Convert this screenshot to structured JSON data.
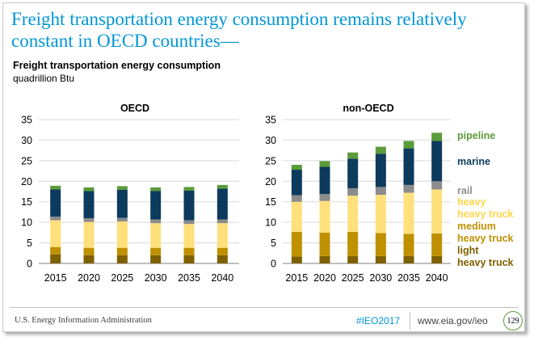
{
  "slide": {
    "title": "Freight transportation energy consumption remains relatively constant in OECD countries—",
    "subtitle": "Freight transportation energy consumption",
    "unit": "quadrillion  Btu"
  },
  "footer": {
    "agency": "U.S. Energy Information Administration",
    "hashtag": "#IEO2017",
    "url": "www.eia.gov/ieo",
    "page_number": "129"
  },
  "colors": {
    "light_heavy_truck": "#7f6000",
    "medium_heavy_truck": "#bf9000",
    "heavy_heavy_truck": "#ffe07a",
    "rail": "#8c8c8c",
    "marine": "#0c3b5d",
    "pipeline": "#5b9b3a"
  },
  "chart_data": [
    {
      "type": "bar",
      "stacked": true,
      "title": "OECD",
      "categories": [
        "2015",
        "2020",
        "2025",
        "2030",
        "2035",
        "2040"
      ],
      "ylim": [
        0,
        35
      ],
      "yticks": [
        0,
        5,
        10,
        15,
        20,
        25,
        30,
        35
      ],
      "series": [
        {
          "key": "light_heavy_truck",
          "values": [
            2.2,
            2.0,
            2.0,
            2.0,
            2.0,
            2.0
          ]
        },
        {
          "key": "medium_heavy_truck",
          "values": [
            1.8,
            1.8,
            1.8,
            1.8,
            1.8,
            1.8
          ]
        },
        {
          "key": "heavy_heavy_truck",
          "values": [
            6.5,
            6.3,
            6.4,
            6.0,
            5.8,
            6.0
          ]
        },
        {
          "key": "rail",
          "values": [
            0.9,
            0.9,
            0.9,
            0.9,
            0.9,
            0.9
          ]
        },
        {
          "key": "marine",
          "values": [
            6.6,
            6.6,
            6.8,
            6.9,
            7.2,
            7.5
          ]
        },
        {
          "key": "pipeline",
          "values": [
            0.9,
            0.9,
            0.9,
            0.9,
            0.9,
            0.9
          ]
        }
      ]
    },
    {
      "type": "bar",
      "stacked": true,
      "title": "non-OECD",
      "categories": [
        "2015",
        "2020",
        "2025",
        "2030",
        "2035",
        "2040"
      ],
      "ylim": [
        0,
        35
      ],
      "yticks": [
        0,
        5,
        10,
        15,
        20,
        25,
        30,
        35
      ],
      "series": [
        {
          "name": "light heavy truck",
          "key": "light_heavy_truck",
          "values": [
            1.7,
            1.8,
            1.8,
            1.8,
            1.8,
            1.8
          ]
        },
        {
          "name": "medium heavy truck",
          "key": "medium_heavy_truck",
          "values": [
            6.0,
            5.7,
            5.9,
            5.6,
            5.4,
            5.5
          ]
        },
        {
          "name": "heavy heavy truck",
          "key": "heavy_heavy_truck",
          "values": [
            7.3,
            7.7,
            8.8,
            9.3,
            10.0,
            10.7
          ]
        },
        {
          "name": "rail",
          "key": "rail",
          "values": [
            1.6,
            1.7,
            1.8,
            1.9,
            1.9,
            2.0
          ]
        },
        {
          "name": "marine",
          "key": "marine",
          "values": [
            6.2,
            6.6,
            7.2,
            8.1,
            8.9,
            9.8
          ]
        },
        {
          "name": "pipeline",
          "key": "pipeline",
          "values": [
            1.2,
            1.4,
            1.5,
            1.7,
            1.8,
            2.0
          ]
        }
      ],
      "legend": [
        {
          "lines": [
            "pipeline"
          ],
          "key": "pipeline"
        },
        {
          "lines": [
            "marine"
          ],
          "key": "marine"
        },
        {
          "lines": [
            "rail"
          ],
          "key": "rail"
        },
        {
          "lines": [
            "heavy",
            "heavy truck"
          ],
          "key": "heavy_heavy_truck"
        },
        {
          "lines": [
            "medium",
            "heavy truck"
          ],
          "key": "medium_heavy_truck"
        },
        {
          "lines": [
            "light",
            "heavy truck"
          ],
          "key": "light_heavy_truck"
        }
      ]
    }
  ]
}
